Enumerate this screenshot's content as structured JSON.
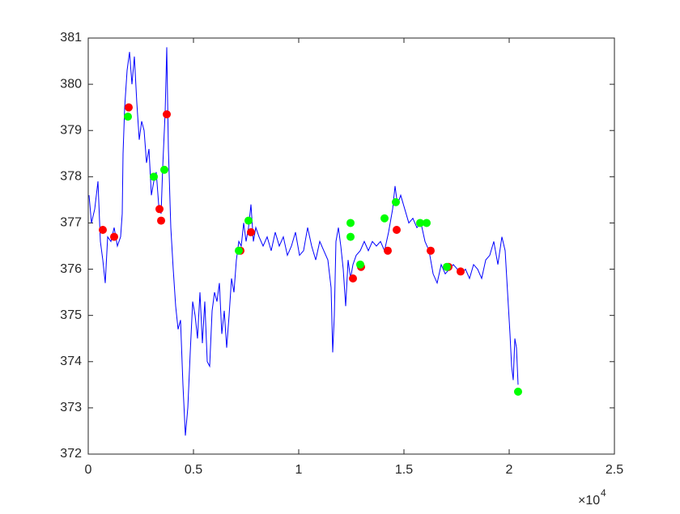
{
  "chart_data": {
    "type": "line",
    "xlim": [
      0,
      25000
    ],
    "ylim": [
      372,
      381
    ],
    "xticks": [
      0,
      {
        "value": 5000,
        "label": "0.5"
      },
      {
        "value": 10000,
        "label": "1"
      },
      {
        "value": 15000,
        "label": "1.5"
      },
      {
        "value": 20000,
        "label": "2"
      },
      {
        "value": 25000,
        "label": "2.5"
      }
    ],
    "yticks": [
      372,
      373,
      374,
      375,
      376,
      377,
      378,
      379,
      380,
      381
    ],
    "x_multiplier": {
      "base": "×10",
      "exponent": "4"
    },
    "series": [
      {
        "style": "line",
        "color": "#0000ff",
        "x": [
          38,
          154,
          308,
          462,
          577,
          692,
          808,
          923,
          1077,
          1231,
          1385,
          1538,
          1615,
          1654,
          1731,
          1846,
          1962,
          2077,
          2192,
          2308,
          2423,
          2538,
          2654,
          2769,
          2885,
          3000,
          3115,
          3231,
          3346,
          3462,
          3538,
          3654,
          3731,
          3808,
          3923,
          4038,
          4154,
          4269,
          4385,
          4500,
          4615,
          4731,
          4846,
          4962,
          5077,
          5192,
          5308,
          5423,
          5538,
          5654,
          5769,
          5885,
          6000,
          6115,
          6231,
          6346,
          6462,
          6577,
          6692,
          6808,
          6923,
          7038,
          7154,
          7269,
          7385,
          7500,
          7615,
          7731,
          7846,
          7962,
          8115,
          8308,
          8500,
          8692,
          8885,
          9077,
          9269,
          9462,
          9654,
          9846,
          10038,
          10231,
          10423,
          10615,
          10808,
          11000,
          11192,
          11385,
          11538,
          11615,
          11692,
          11769,
          11885,
          12000,
          12115,
          12231,
          12346,
          12462,
          12577,
          12731,
          12923,
          13115,
          13308,
          13500,
          13692,
          13885,
          14077,
          14269,
          14462,
          14577,
          14692,
          14846,
          15038,
          15231,
          15423,
          15615,
          15808,
          16000,
          16192,
          16385,
          16577,
          16769,
          16962,
          17154,
          17346,
          17538,
          17731,
          17923,
          18115,
          18308,
          18500,
          18692,
          18885,
          19077,
          19269,
          19462,
          19654,
          19808,
          19923,
          20038,
          20115,
          20192,
          20269,
          20346,
          20423
        ],
        "values": [
          377.6,
          377.0,
          377.3,
          377.9,
          376.6,
          376.2,
          375.7,
          376.7,
          376.6,
          376.9,
          376.5,
          376.7,
          377.2,
          378.5,
          379.5,
          380.3,
          380.7,
          380.0,
          380.6,
          379.6,
          378.8,
          379.2,
          379.0,
          378.3,
          378.6,
          377.6,
          377.9,
          378.1,
          377.4,
          377.2,
          378.2,
          379.4,
          380.8,
          378.6,
          376.9,
          376.0,
          375.2,
          374.7,
          374.9,
          373.5,
          372.4,
          373.0,
          374.2,
          375.3,
          375.0,
          374.5,
          375.5,
          374.4,
          375.3,
          374.0,
          373.9,
          375.1,
          375.5,
          375.3,
          375.7,
          374.6,
          375.1,
          374.3,
          375.0,
          375.8,
          375.5,
          376.2,
          376.6,
          376.5,
          377.0,
          376.6,
          376.9,
          377.4,
          376.6,
          376.9,
          376.7,
          376.5,
          376.7,
          376.4,
          376.8,
          376.5,
          376.7,
          376.3,
          376.5,
          376.8,
          376.3,
          376.4,
          376.9,
          376.5,
          376.2,
          376.6,
          376.4,
          376.2,
          375.6,
          374.2,
          375.0,
          376.6,
          376.9,
          376.5,
          376.0,
          375.2,
          376.2,
          375.8,
          376.1,
          376.3,
          376.4,
          376.6,
          376.4,
          376.6,
          376.5,
          376.6,
          376.4,
          376.8,
          377.3,
          377.8,
          377.4,
          377.6,
          377.3,
          377.0,
          377.1,
          376.9,
          377.0,
          376.6,
          376.4,
          375.9,
          375.7,
          376.1,
          375.9,
          376.0,
          376.1,
          376.0,
          375.9,
          376.0,
          375.8,
          376.1,
          376.0,
          375.8,
          376.2,
          376.3,
          376.6,
          376.1,
          376.7,
          376.4,
          375.5,
          374.6,
          373.9,
          373.6,
          374.5,
          374.3,
          373.5
        ]
      },
      {
        "style": "marker",
        "color": "#ff0000",
        "x": [
          692,
          1231,
          1923,
          3385,
          3462,
          3731,
          7231,
          7731,
          12577,
          12962,
          14231,
          14654,
          16269,
          17115,
          17692
        ],
        "values": [
          376.85,
          376.7,
          379.5,
          377.3,
          377.05,
          379.35,
          376.4,
          376.8,
          375.8,
          376.05,
          376.4,
          376.85,
          376.4,
          376.05,
          375.95
        ]
      },
      {
        "style": "marker",
        "color": "#00ff00",
        "x": [
          1885,
          3115,
          3615,
          7154,
          7615,
          12462,
          12462,
          12923,
          14077,
          14615,
          15769,
          16077,
          17038,
          20423
        ],
        "values": [
          379.3,
          378.0,
          378.15,
          376.4,
          377.05,
          377.0,
          376.7,
          376.1,
          377.1,
          377.45,
          377.0,
          377.0,
          376.05,
          373.35
        ]
      }
    ]
  }
}
